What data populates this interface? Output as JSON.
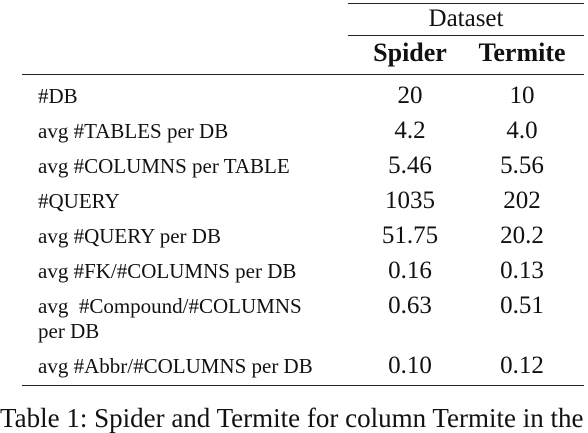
{
  "table": {
    "group_header": "Dataset",
    "columns": [
      "Spider",
      "Termite"
    ],
    "rows": [
      {
        "label": "#DB",
        "spider": "20",
        "termite": "10"
      },
      {
        "label": "avg #TABLES per DB",
        "spider": "4.2",
        "termite": "4.0"
      },
      {
        "label": "avg #COLUMNS per TABLE",
        "spider": "5.46",
        "termite": "5.56"
      },
      {
        "label": "#QUERY",
        "spider": "1035",
        "termite": "202"
      },
      {
        "label": "avg #QUERY per DB",
        "spider": "51.75",
        "termite": "20.2"
      },
      {
        "label": "avg #FK/#COLUMNS per DB",
        "spider": "0.16",
        "termite": "0.13"
      },
      {
        "label_line1": "avg  #Compound/#COLUMNS",
        "label_line2": "per DB",
        "spider": "0.63",
        "termite": "0.51"
      },
      {
        "label": "avg #Abbr/#COLUMNS per DB",
        "spider": "0.10",
        "termite": "0.12"
      }
    ]
  },
  "caption": "Table 1: Spider and Termite for column Termite in the"
}
